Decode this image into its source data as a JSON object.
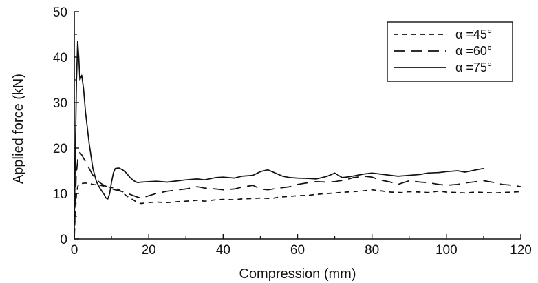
{
  "chart_data": {
    "type": "line",
    "title": "",
    "xlabel": "Compression (mm)",
    "ylabel": "Applied force (kN)",
    "xlim": [
      0,
      120
    ],
    "ylim": [
      0,
      50
    ],
    "xticks": [
      0,
      20,
      40,
      60,
      80,
      100,
      120
    ],
    "yticks": [
      0,
      10,
      20,
      30,
      40,
      50
    ],
    "grid": false,
    "legend_position": "top-right",
    "series": [
      {
        "name": "α =45°",
        "style": "short-dash",
        "color": "#111111",
        "x": [
          0,
          0.3,
          0.6,
          0.9,
          1.2,
          2,
          3,
          4,
          5,
          6,
          7,
          8,
          9,
          10,
          11,
          12,
          13,
          14,
          15,
          16,
          17,
          18,
          20,
          22,
          25,
          28,
          30,
          33,
          35,
          38,
          40,
          43,
          45,
          48,
          50,
          53,
          55,
          58,
          60,
          63,
          65,
          68,
          70,
          73,
          75,
          78,
          80,
          82,
          85,
          88,
          90,
          93,
          95,
          98,
          100,
          103,
          105,
          108,
          110,
          113,
          115,
          118,
          120
        ],
        "y": [
          1,
          6,
          10,
          11.5,
          12,
          12.2,
          12.3,
          12.2,
          12,
          11.9,
          11.8,
          11.6,
          11.5,
          11.3,
          11.2,
          10.8,
          10.2,
          9.5,
          9,
          8.5,
          8,
          7.8,
          8,
          8.1,
          8,
          8.2,
          8.3,
          8.5,
          8.3,
          8.6,
          8.7,
          8.6,
          8.8,
          8.9,
          9,
          8.9,
          9.2,
          9.4,
          9.5,
          9.6,
          9.8,
          10,
          10.1,
          10.3,
          10.4,
          10.6,
          10.8,
          10.6,
          10.3,
          10.2,
          10.4,
          10.3,
          10.2,
          10.5,
          10.3,
          10.2,
          10.1,
          10.3,
          10.2,
          10.1,
          10.2,
          10.3,
          10.4
        ]
      },
      {
        "name": "α =60°",
        "style": "long-dash",
        "color": "#111111",
        "x": [
          0,
          0.5,
          1,
          1.5,
          2,
          3,
          4,
          5,
          6,
          7,
          8,
          9,
          10,
          11,
          12,
          13,
          14,
          15,
          16,
          17,
          18,
          20,
          22,
          25,
          28,
          30,
          33,
          35,
          38,
          40,
          43,
          45,
          48,
          50,
          52,
          55,
          58,
          60,
          63,
          65,
          68,
          70,
          73,
          75,
          78,
          80,
          82,
          85,
          87,
          90,
          93,
          95,
          98,
          100,
          103,
          105,
          108,
          110,
          113,
          115,
          118,
          120
        ],
        "y": [
          0,
          14,
          18,
          19,
          18.5,
          17,
          15.5,
          14,
          13,
          12.3,
          11.8,
          11.4,
          11,
          10.8,
          10.6,
          10.4,
          10.1,
          9.8,
          9.5,
          9.2,
          9,
          9.5,
          10,
          10.5,
          10.8,
          11,
          11.5,
          11.2,
          11,
          10.8,
          11,
          11.4,
          11.8,
          11,
          10.8,
          11.2,
          11.5,
          12,
          12.4,
          12.6,
          12.5,
          12.6,
          13,
          13.5,
          13.8,
          13.6,
          13,
          12.5,
          12,
          12.8,
          12.5,
          12.4,
          12,
          11.8,
          12,
          12.3,
          12.6,
          12.8,
          12.4,
          12,
          11.8,
          11.5
        ]
      },
      {
        "name": "α =75°",
        "style": "solid",
        "color": "#111111",
        "x": [
          0,
          0.3,
          0.6,
          0.9,
          1.2,
          1.5,
          2,
          2.5,
          3,
          4,
          5,
          6,
          7,
          8,
          8.5,
          9,
          9.5,
          10,
          10.5,
          11,
          12,
          13,
          14,
          15,
          16,
          17,
          18,
          20,
          22,
          25,
          28,
          30,
          33,
          35,
          38,
          40,
          43,
          45,
          48,
          50,
          52,
          54,
          56,
          58,
          60,
          63,
          65,
          68,
          70,
          72,
          74,
          76,
          78,
          80,
          82,
          85,
          87,
          90,
          93,
          95,
          98,
          100,
          103,
          105,
          108,
          110
        ],
        "y": [
          3,
          20,
          35,
          43.5,
          40,
          35,
          36,
          33,
          28,
          21,
          15.5,
          12.5,
          11,
          9.8,
          9,
          8.8,
          10,
          12.5,
          14.5,
          15.5,
          15.6,
          15.2,
          14.5,
          13.5,
          12.8,
          12.4,
          12.5,
          12.6,
          12.7,
          12.5,
          12.8,
          13,
          13.2,
          13,
          13.5,
          13.6,
          13.4,
          13.8,
          14,
          14.8,
          15.2,
          14.5,
          13.8,
          13.5,
          13.4,
          13.3,
          13.2,
          13.8,
          14.5,
          13.5,
          13.7,
          14,
          14.3,
          14.5,
          14.3,
          14,
          13.8,
          14,
          14.2,
          14.5,
          14.6,
          14.8,
          15,
          14.7,
          15.2,
          15.5
        ]
      }
    ]
  }
}
